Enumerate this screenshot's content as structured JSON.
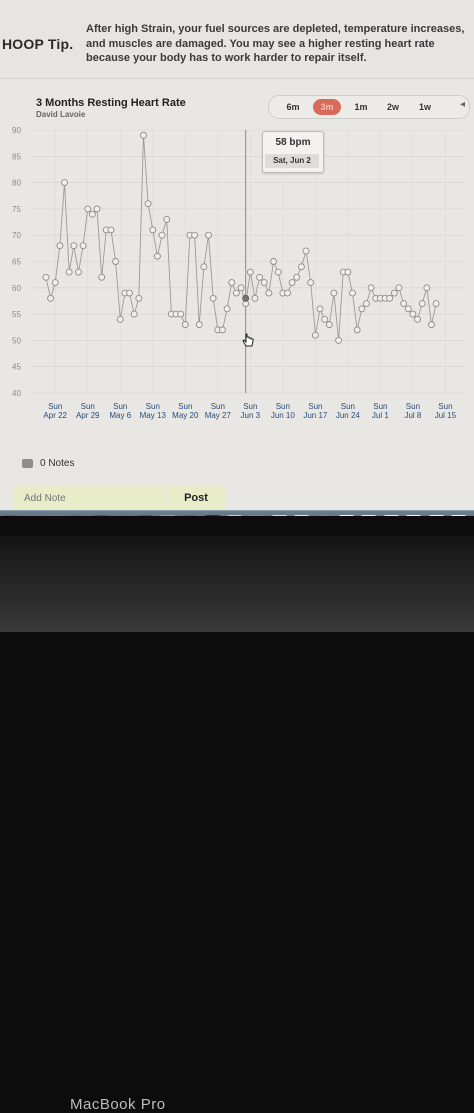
{
  "tip": {
    "label": "HOOP Tip.",
    "text": "After high Strain, your fuel sources are depleted, temperature increases, and muscles are damaged. You may see a higher resting heart rate because your body has to work harder to repair itself."
  },
  "chart_header": {
    "title": "3 Months Resting Heart Rate",
    "subtitle": "David Lavoie"
  },
  "ranges": [
    "6m",
    "3m",
    "1m",
    "2w",
    "1w"
  ],
  "active_range": "3m",
  "tooltip": {
    "value": "58 bpm",
    "date": "Sat, Jun 2"
  },
  "notes": {
    "count_label": "0 Notes",
    "placeholder": "Add Note",
    "post_label": "Post"
  },
  "device": {
    "brand": "MacBook Pro"
  },
  "colors": {
    "accent": "#d86a5a",
    "line": "#9a9a9a",
    "marker": "#8c8c8c"
  },
  "dock_icons": [
    "app-icon",
    "settings-icon",
    "skype-icon",
    "safari-icon",
    "word-icon",
    "powerpoint-icon",
    "zotero-icon",
    "zip-icon",
    "excel-icon",
    "terminal-icon",
    "stickies-icon",
    "folder-icon",
    "help-icon",
    "colors-icon",
    "finder-icon",
    "document-icon",
    "document-icon",
    "document-icon",
    "document-icon",
    "document-icon",
    "document-icon"
  ],
  "chart_data": {
    "type": "line",
    "series": [
      {
        "values": [
          62,
          58,
          61,
          68,
          80,
          63,
          68,
          63,
          68,
          75,
          74,
          75,
          62,
          71,
          71,
          65,
          54,
          59,
          59,
          55,
          58,
          89,
          76,
          71,
          66,
          70,
          73,
          55,
          55,
          55,
          53,
          70,
          70,
          53,
          64,
          70,
          58,
          52,
          52,
          56,
          61,
          59,
          60,
          57,
          63,
          58,
          62,
          61,
          59,
          65,
          63,
          59,
          59,
          61,
          62,
          64,
          67,
          61,
          51,
          56,
          54,
          53,
          59,
          50,
          63,
          63,
          59,
          52,
          56,
          57,
          60,
          58,
          58,
          58,
          58,
          59,
          60,
          57,
          56,
          55,
          54,
          57,
          60,
          53,
          57
        ]
      }
    ],
    "marker_count": 85,
    "xlim": [
      "2018-04-17",
      "2018-07-19"
    ],
    "x_ticks": [
      {
        "day": "Sun",
        "date": "Apr 22"
      },
      {
        "day": "Sun",
        "date": "Apr 29"
      },
      {
        "day": "Sun",
        "date": "May 6"
      },
      {
        "day": "Sun",
        "date": "May 13"
      },
      {
        "day": "Sun",
        "date": "May 20"
      },
      {
        "day": "Sun",
        "date": "May 27"
      },
      {
        "day": "Sun",
        "date": "Jun 3"
      },
      {
        "day": "Sun",
        "date": "Jun 10"
      },
      {
        "day": "Sun",
        "date": "Jun 17"
      },
      {
        "day": "Sun",
        "date": "Jun 24"
      },
      {
        "day": "Sun",
        "date": "Jul 1"
      },
      {
        "day": "Sun",
        "date": "Jul 8"
      },
      {
        "day": "Sun",
        "date": "Jul 15"
      }
    ],
    "y_ticks": [
      40,
      45,
      50,
      55,
      60,
      65,
      70,
      75,
      80,
      85,
      90
    ],
    "ylim": [
      40,
      90
    ],
    "highlight": {
      "date": "2018-06-02",
      "value": 58
    },
    "grid": true
  }
}
